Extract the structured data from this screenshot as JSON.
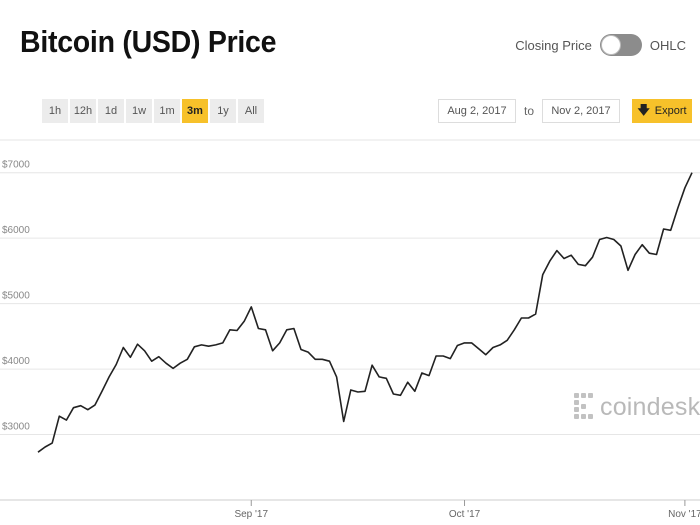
{
  "header": {
    "title": "Bitcoin (USD) Price"
  },
  "toggle": {
    "left_label": "Closing Price",
    "right_label": "OHLC"
  },
  "ranges": [
    "1h",
    "12h",
    "1d",
    "1w",
    "1m",
    "3m",
    "1y",
    "All"
  ],
  "active_range": "3m",
  "dates": {
    "from": "Aug 2, 2017",
    "separator": "to",
    "to": "Nov 2, 2017"
  },
  "export": {
    "label": "Export",
    "icon": "down-arrow-icon"
  },
  "watermark": {
    "text": "coindesk",
    "icon": "coindesk-logo-icon"
  },
  "colors": {
    "accent": "#f7c12a",
    "line": "#222222",
    "grid": "#e6e6e6",
    "watermark": "#b9b9b9"
  },
  "chart_data": {
    "type": "line",
    "title": "Bitcoin (USD) Price",
    "xlabel": "",
    "ylabel": "",
    "x_range": [
      "2017-08-02",
      "2017-11-02"
    ],
    "ylim": [
      2000,
      7500
    ],
    "y_ticks": [
      3000,
      4000,
      5000,
      6000,
      7000
    ],
    "y_tick_labels": [
      "$3000",
      "$4000",
      "$5000",
      "$6000",
      "$7000"
    ],
    "x_ticks": [
      "2017-09-01",
      "2017-10-01",
      "2017-11-01"
    ],
    "x_tick_labels": [
      "Sep '17",
      "Oct '17",
      "Nov '17"
    ],
    "grid": true,
    "series": [
      {
        "name": "",
        "x": [
          "2017-08-02",
          "2017-08-03",
          "2017-08-04",
          "2017-08-05",
          "2017-08-06",
          "2017-08-07",
          "2017-08-08",
          "2017-08-09",
          "2017-08-10",
          "2017-08-11",
          "2017-08-12",
          "2017-08-13",
          "2017-08-14",
          "2017-08-15",
          "2017-08-16",
          "2017-08-17",
          "2017-08-18",
          "2017-08-19",
          "2017-08-20",
          "2017-08-21",
          "2017-08-22",
          "2017-08-23",
          "2017-08-24",
          "2017-08-25",
          "2017-08-26",
          "2017-08-27",
          "2017-08-28",
          "2017-08-29",
          "2017-08-30",
          "2017-08-31",
          "2017-09-01",
          "2017-09-02",
          "2017-09-03",
          "2017-09-04",
          "2017-09-05",
          "2017-09-06",
          "2017-09-07",
          "2017-09-08",
          "2017-09-09",
          "2017-09-10",
          "2017-09-11",
          "2017-09-12",
          "2017-09-13",
          "2017-09-14",
          "2017-09-15",
          "2017-09-16",
          "2017-09-17",
          "2017-09-18",
          "2017-09-19",
          "2017-09-20",
          "2017-09-21",
          "2017-09-22",
          "2017-09-23",
          "2017-09-24",
          "2017-09-25",
          "2017-09-26",
          "2017-09-27",
          "2017-09-28",
          "2017-09-29",
          "2017-09-30",
          "2017-10-01",
          "2017-10-02",
          "2017-10-03",
          "2017-10-04",
          "2017-10-05",
          "2017-10-06",
          "2017-10-07",
          "2017-10-08",
          "2017-10-09",
          "2017-10-10",
          "2017-10-11",
          "2017-10-12",
          "2017-10-13",
          "2017-10-14",
          "2017-10-15",
          "2017-10-16",
          "2017-10-17",
          "2017-10-18",
          "2017-10-19",
          "2017-10-20",
          "2017-10-21",
          "2017-10-22",
          "2017-10-23",
          "2017-10-24",
          "2017-10-25",
          "2017-10-26",
          "2017-10-27",
          "2017-10-28",
          "2017-10-29",
          "2017-10-30",
          "2017-10-31",
          "2017-11-01",
          "2017-11-02"
        ],
        "values": [
          2730,
          2810,
          2870,
          3280,
          3220,
          3410,
          3440,
          3380,
          3450,
          3660,
          3880,
          4070,
          4330,
          4180,
          4380,
          4280,
          4120,
          4190,
          4090,
          4010,
          4090,
          4150,
          4340,
          4370,
          4350,
          4370,
          4400,
          4600,
          4590,
          4730,
          4950,
          4620,
          4600,
          4280,
          4400,
          4600,
          4620,
          4300,
          4260,
          4150,
          4150,
          4120,
          3880,
          3200,
          3680,
          3650,
          3660,
          4060,
          3880,
          3860,
          3620,
          3600,
          3800,
          3660,
          3940,
          3900,
          4200,
          4200,
          4160,
          4360,
          4400,
          4400,
          4310,
          4220,
          4330,
          4370,
          4440,
          4600,
          4780,
          4780,
          4840,
          5440,
          5650,
          5810,
          5690,
          5740,
          5600,
          5580,
          5710,
          5980,
          6010,
          5980,
          5880,
          5510,
          5750,
          5900,
          5770,
          5750,
          6140,
          6120,
          6460,
          6770,
          7000
        ]
      }
    ]
  }
}
